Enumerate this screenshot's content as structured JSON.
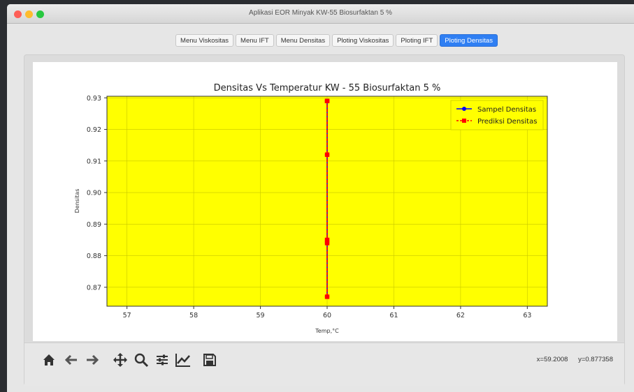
{
  "window": {
    "title": "Aplikasi EOR Minyak KW-55 Biosurfaktan 5 %"
  },
  "tabs": [
    {
      "label": "Menu Viskositas",
      "active": false
    },
    {
      "label": "Menu IFT",
      "active": false
    },
    {
      "label": "Menu Densitas",
      "active": false
    },
    {
      "label": "Ploting Viskositas",
      "active": false
    },
    {
      "label": "Ploting IFT",
      "active": false
    },
    {
      "label": "Ploting Densitas",
      "active": true
    }
  ],
  "toolbar": {
    "icons": [
      "home-icon",
      "back-arrow-icon",
      "forward-arrow-icon",
      "pan-icon",
      "zoom-icon",
      "subplots-config-icon",
      "customize-lines-icon",
      "save-icon"
    ],
    "coord_x": "x=59.2008",
    "coord_y": "y=0.877358"
  },
  "colors": {
    "plot_bg": "#ffff00",
    "sample": "#0000ff",
    "prediction": "#ff0000",
    "active_tab": "#2f7ff3"
  },
  "chart_data": {
    "type": "line",
    "title": "Densitas Vs Temperatur KW - 55 Biosurfaktan 5 %",
    "xlabel": "Temp,°C",
    "ylabel": "Densitas",
    "xlim": [
      56.7,
      63.3
    ],
    "ylim": [
      0.864,
      0.9305
    ],
    "xticks": [
      "57",
      "58",
      "59",
      "60",
      "61",
      "62",
      "63"
    ],
    "yticks": [
      "0.87",
      "0.88",
      "0.89",
      "0.90",
      "0.91",
      "0.92",
      "0.93"
    ],
    "grid": true,
    "legend_position": "top-right",
    "series": [
      {
        "name": "Sampel Densitas",
        "color": "#0000ff",
        "marker": "o",
        "linestyle": "solid",
        "x": [
          60,
          60,
          60,
          60,
          60,
          60
        ],
        "y": [
          0.929,
          0.912,
          0.885,
          0.884,
          0.867,
          0.929
        ]
      },
      {
        "name": "Prediksi Densitas",
        "color": "#ff0000",
        "marker": "s",
        "linestyle": "dashed",
        "x": [
          60,
          60,
          60,
          60,
          60,
          60
        ],
        "y": [
          0.929,
          0.912,
          0.885,
          0.884,
          0.867,
          0.929
        ]
      }
    ]
  }
}
